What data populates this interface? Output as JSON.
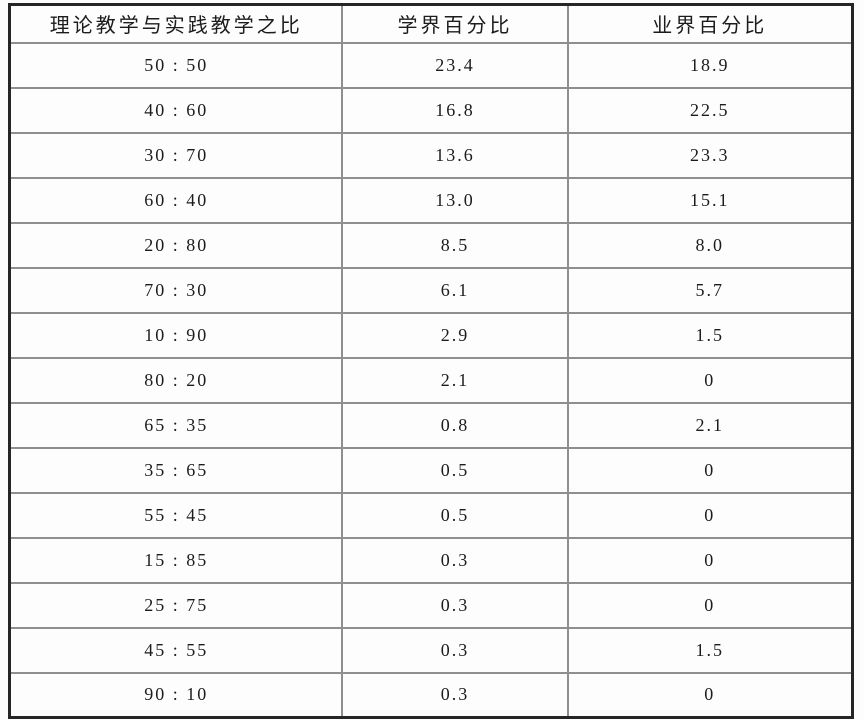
{
  "table": {
    "headers": [
      "理论教学与实践教学之比",
      "学界百分比",
      "业界百分比"
    ],
    "rows": [
      {
        "ratio": "50 : 50",
        "academic": "23.4",
        "industry": "18.9"
      },
      {
        "ratio": "40 : 60",
        "academic": "16.8",
        "industry": "22.5"
      },
      {
        "ratio": "30 : 70",
        "academic": "13.6",
        "industry": "23.3"
      },
      {
        "ratio": "60 : 40",
        "academic": "13.0",
        "industry": "15.1"
      },
      {
        "ratio": "20 : 80",
        "academic": "8.5",
        "industry": "8.0"
      },
      {
        "ratio": "70 : 30",
        "academic": "6.1",
        "industry": "5.7"
      },
      {
        "ratio": "10 : 90",
        "academic": "2.9",
        "industry": "1.5"
      },
      {
        "ratio": "80 : 20",
        "academic": "2.1",
        "industry": "0"
      },
      {
        "ratio": "65 : 35",
        "academic": "0.8",
        "industry": "2.1"
      },
      {
        "ratio": "35 : 65",
        "academic": "0.5",
        "industry": "0"
      },
      {
        "ratio": "55 : 45",
        "academic": "0.5",
        "industry": "0"
      },
      {
        "ratio": "15 : 85",
        "academic": "0.3",
        "industry": "0"
      },
      {
        "ratio": "25 : 75",
        "academic": "0.3",
        "industry": "0"
      },
      {
        "ratio": "45 : 55",
        "academic": "0.3",
        "industry": "1.5"
      },
      {
        "ratio": "90 : 10",
        "academic": "0.3",
        "industry": "0"
      }
    ]
  },
  "colors": {
    "outer_border": "#262626",
    "inner_grid": "#8f8f8f",
    "text": "#1c1c1c",
    "background": "#fdfdfd"
  },
  "chart_data": {
    "type": "table",
    "title": "",
    "columns": [
      "理论教学与实践教学之比",
      "学界百分比",
      "业界百分比"
    ],
    "categories": [
      "50:50",
      "40:60",
      "30:70",
      "60:40",
      "20:80",
      "70:30",
      "10:90",
      "80:20",
      "65:35",
      "35:65",
      "55:45",
      "15:85",
      "25:75",
      "45:55",
      "90:10"
    ],
    "series": [
      {
        "name": "学界百分比",
        "values": [
          23.4,
          16.8,
          13.6,
          13.0,
          8.5,
          6.1,
          2.9,
          2.1,
          0.8,
          0.5,
          0.5,
          0.3,
          0.3,
          0.3,
          0.3
        ]
      },
      {
        "name": "业界百分比",
        "values": [
          18.9,
          22.5,
          23.3,
          15.1,
          8.0,
          5.7,
          1.5,
          0,
          2.1,
          0,
          0,
          0,
          0,
          1.5,
          0
        ]
      }
    ],
    "layout": {
      "grid": "full-borders",
      "header_row": true
    }
  }
}
